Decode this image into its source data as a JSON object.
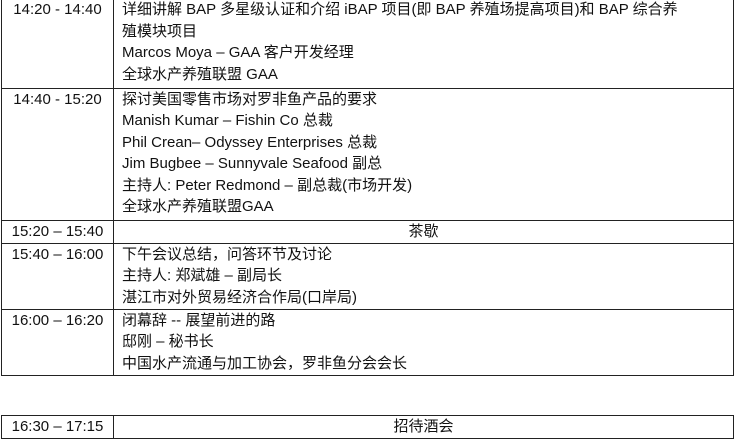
{
  "schedule": [
    {
      "time": "14:20 - 14:40",
      "lines": [
        "详细讲解 BAP 多星级认证和介绍 iBAP 项目(即 BAP 养殖场提高项目)和 BAP 综合养",
        "殖模块项目",
        "Marcos Moya – GAA 客户开发经理",
        "全球水产养殖联盟 GAA"
      ]
    },
    {
      "time": "14:40 - 15:20",
      "lines": [
        "探讨美国零售市场对罗非鱼产品的要求",
        "Manish Kumar – Fishin Co 总裁",
        "Phil Crean– Odyssey Enterprises 总裁",
        "Jim Bugbee – Sunnyvale Seafood 副总",
        "主持人: Peter Redmond – 副总裁(市场开发)",
        "全球水产养殖联盟GAA"
      ]
    },
    {
      "time": "15:20 – 15:40",
      "lines": [
        "茶歇"
      ]
    },
    {
      "time": "15:40 – 16:00",
      "lines": [
        "下午会议总结，问答环节及讨论",
        "主持人: 郑斌雄 – 副局长",
        "湛江市对外贸易经济合作局(口岸局)"
      ]
    },
    {
      "time": "16:00 – 16:20",
      "lines": [
        "闭幕辞 --  展望前进的路",
        "邸刚 –  秘书长",
        "中国水产流通与加工协会，罗非鱼分会会长"
      ]
    }
  ],
  "reception": {
    "time": "16:30 – 17:15",
    "label": "招待酒会"
  }
}
